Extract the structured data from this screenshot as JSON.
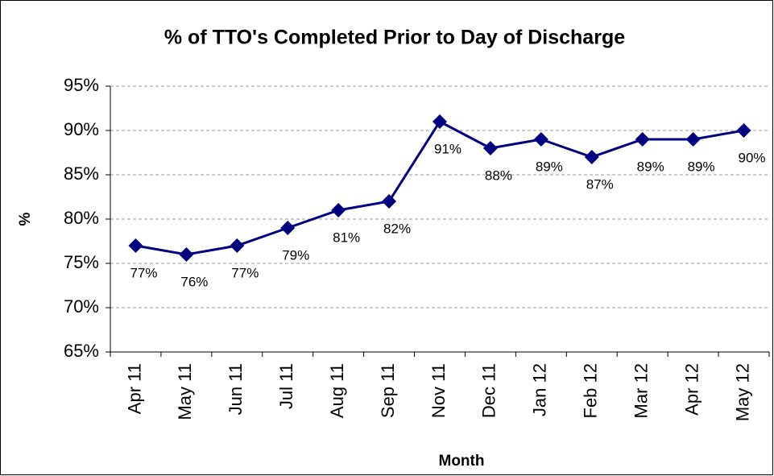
{
  "chart_data": {
    "type": "line",
    "title": "% of TTO's Completed Prior to Day of Discharge",
    "x_label": "Month",
    "y_label": "%",
    "categories": [
      "Apr 11",
      "May 11",
      "Jun 11",
      "Jul 11",
      "Aug 11",
      "Sep 11",
      "Nov 11",
      "Dec 11",
      "Jan 12",
      "Feb 12",
      "Mar 12",
      "Apr 12",
      "May 12"
    ],
    "series": [
      {
        "name": "% of TTO's Completed Prior to Day of Discharge",
        "color": "#000080",
        "values": [
          77,
          76,
          77,
          79,
          81,
          82,
          91,
          88,
          89,
          87,
          89,
          89,
          90
        ],
        "value_labels": [
          "77%",
          "76%",
          "77%",
          "79%",
          "81%",
          "82%",
          "91%",
          "88%",
          "89%",
          "87%",
          "89%",
          "89%",
          "90%"
        ]
      }
    ],
    "ylim": [
      65,
      95
    ],
    "yticks": [
      {
        "value": 65,
        "label": "65%"
      },
      {
        "value": 70,
        "label": "70%"
      },
      {
        "value": 75,
        "label": "75%"
      },
      {
        "value": 80,
        "label": "80%"
      },
      {
        "value": 85,
        "label": "85%"
      },
      {
        "value": 90,
        "label": "90%"
      },
      {
        "value": 95,
        "label": "95%"
      }
    ],
    "grid": true
  }
}
